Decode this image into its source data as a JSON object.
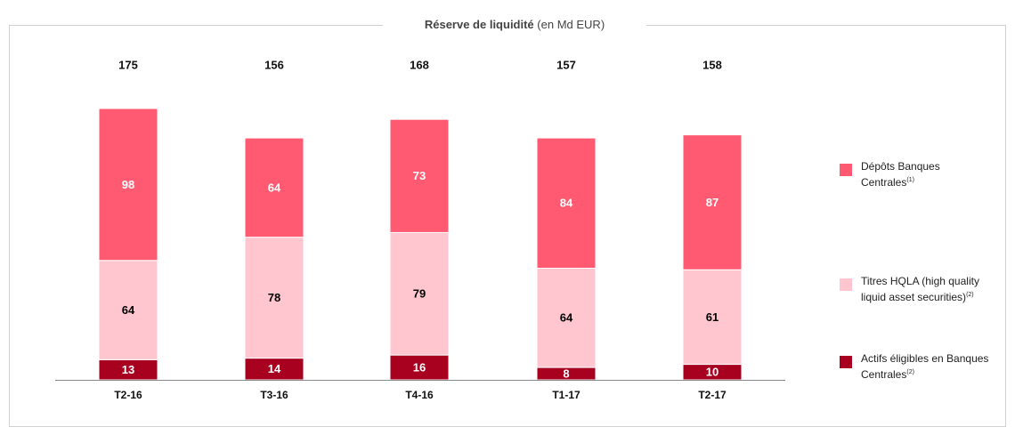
{
  "chart_data": {
    "type": "stacked_bar",
    "title": "Réserve de liquidité",
    "subtitle": "(en Md EUR)",
    "categories": [
      "T2-16",
      "T3-16",
      "T4-16",
      "T1-17",
      "T2-17"
    ],
    "totals": [
      175,
      156,
      168,
      157,
      158
    ],
    "series": [
      {
        "name": "Actifs éligibles en Banques Centrales",
        "note": "(2)",
        "color": "#a8001f",
        "label_color": "#ffffff",
        "values": [
          13,
          14,
          16,
          8,
          10
        ]
      },
      {
        "name": "Titres HQLA (high quality liquid asset securities)",
        "note": "(2)",
        "color": "#ffc6d0",
        "label_color": "#000000",
        "values": [
          64,
          78,
          79,
          64,
          61
        ]
      },
      {
        "name": "Dépôts Banques Centrales",
        "note": "(1)",
        "color": "#ff5a72",
        "label_color": "#ffffff",
        "values": [
          98,
          64,
          73,
          84,
          87
        ]
      }
    ],
    "legend": "right"
  }
}
